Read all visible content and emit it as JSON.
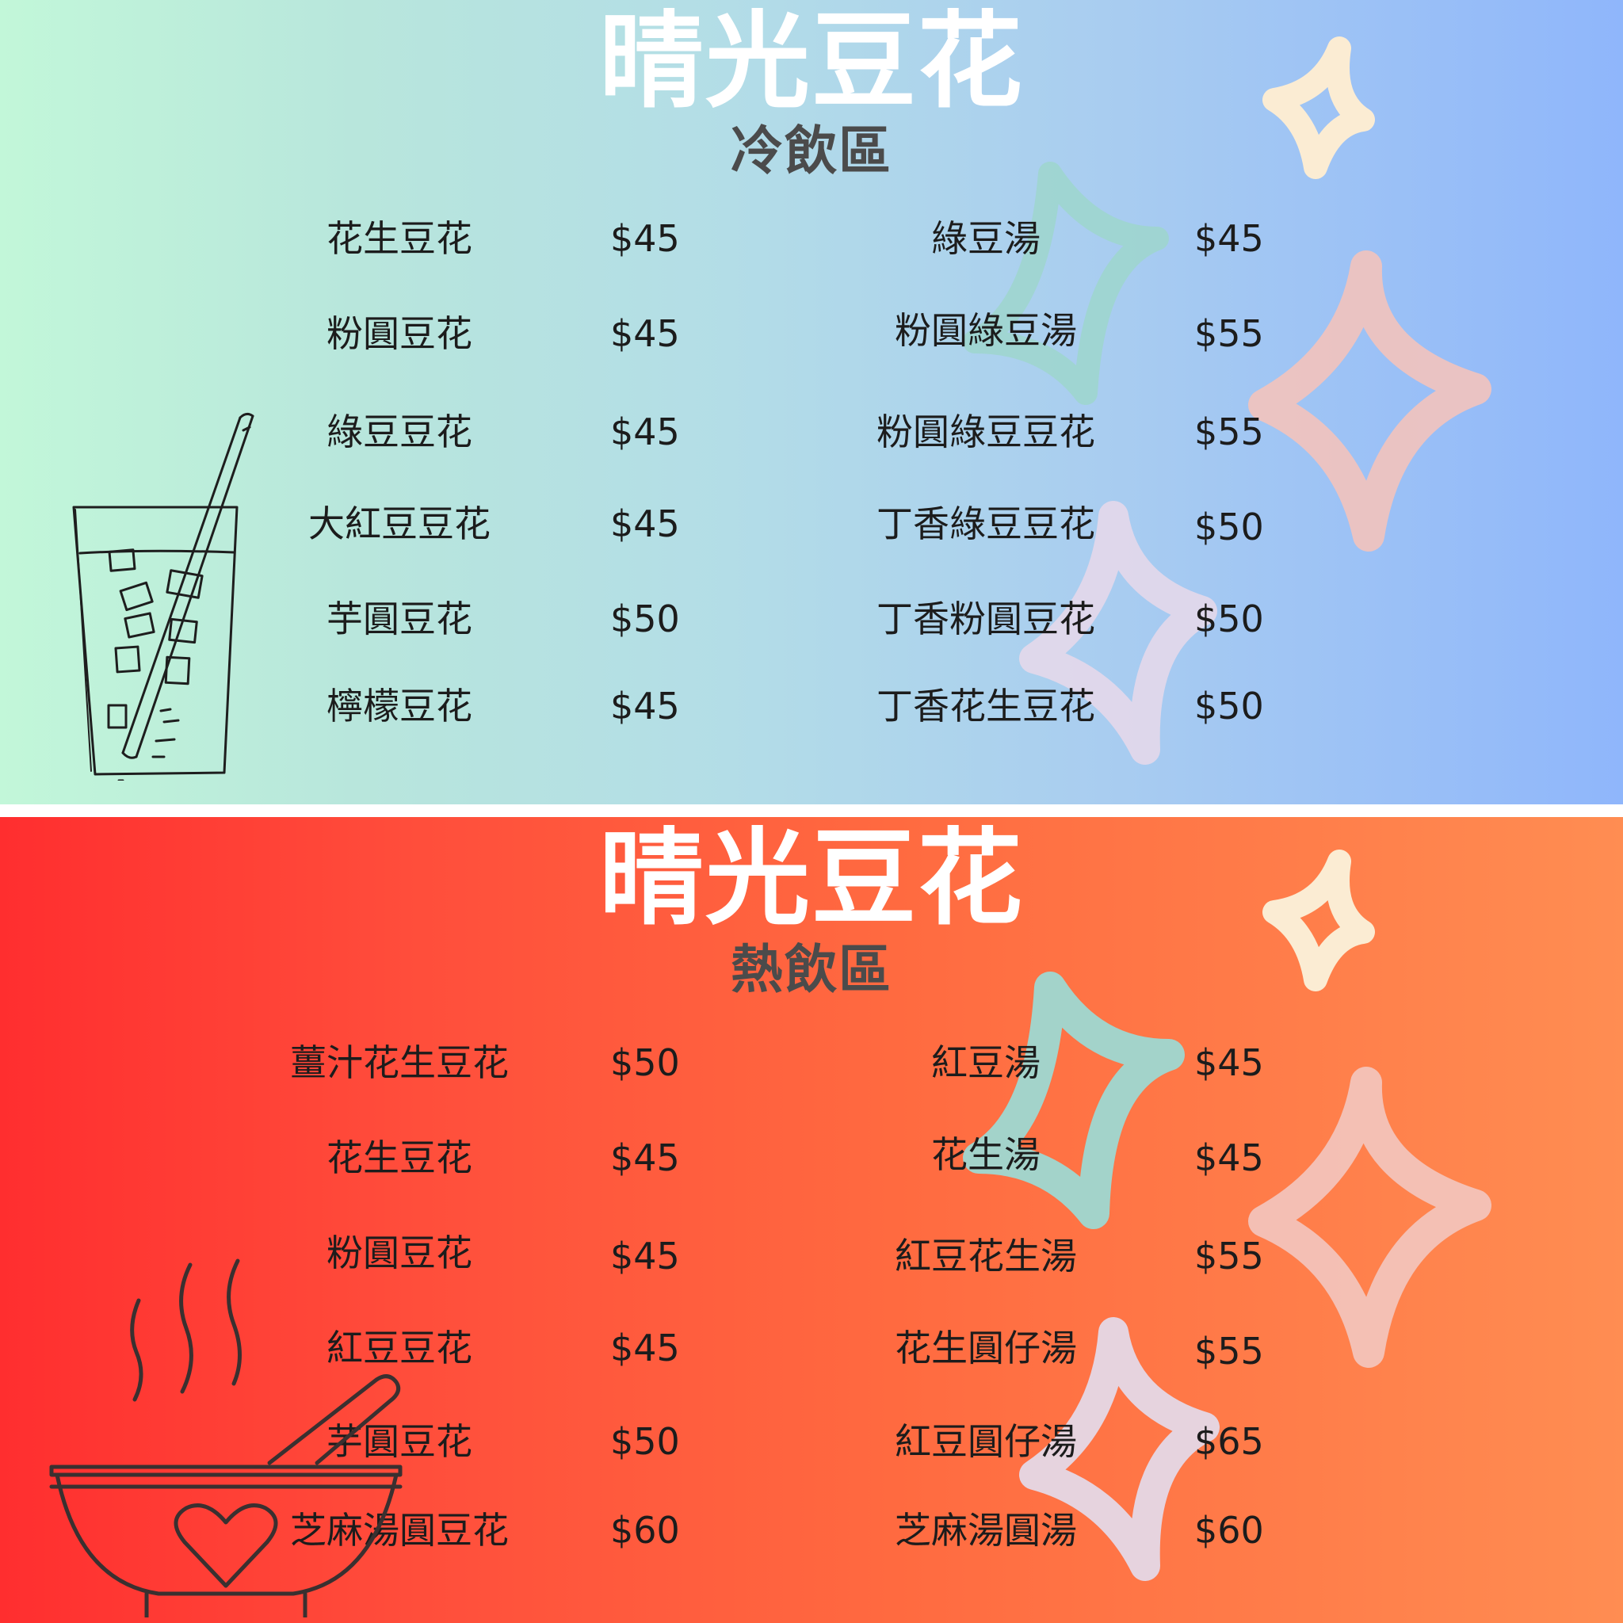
{
  "cold": {
    "title": "晴光豆花",
    "section": "冷飲區",
    "left": [
      {
        "name": "花生豆花",
        "price": "$45"
      },
      {
        "name": "粉圓豆花",
        "price": "$45"
      },
      {
        "name": "綠豆豆花",
        "price": "$45"
      },
      {
        "name": "大紅豆豆花",
        "price": "$45"
      },
      {
        "name": "芋圓豆花",
        "price": "$50"
      },
      {
        "name": "檸檬豆花",
        "price": "$45"
      }
    ],
    "right": [
      {
        "name": "綠豆湯",
        "price": "$45"
      },
      {
        "name": "粉圓綠豆湯",
        "price": "$55"
      },
      {
        "name": "粉圓綠豆豆花",
        "price": "$55"
      },
      {
        "name": "丁香綠豆豆花",
        "price": "$50"
      },
      {
        "name": "丁香粉圓豆花",
        "price": "$50"
      },
      {
        "name": "丁香花生豆花",
        "price": "$50"
      }
    ]
  },
  "hot": {
    "title": "晴光豆花",
    "section": "熱飲區",
    "left": [
      {
        "name": "薑汁花生豆花",
        "price": "$50"
      },
      {
        "name": "花生豆花",
        "price": "$45"
      },
      {
        "name": "粉圓豆花",
        "price": "$45"
      },
      {
        "name": "紅豆豆花",
        "price": "$45"
      },
      {
        "name": "芋圓豆花",
        "price": "$50"
      },
      {
        "name": "芝麻湯圓豆花",
        "price": "$60"
      }
    ],
    "right": [
      {
        "name": "紅豆湯",
        "price": "$45"
      },
      {
        "name": "花生湯",
        "price": "$45"
      },
      {
        "name": "紅豆花生湯",
        "price": "$55"
      },
      {
        "name": "花生圓仔湯",
        "price": "$55"
      },
      {
        "name": "紅豆圓仔湯",
        "price": "$65"
      },
      {
        "name": "芝麻湯圓湯",
        "price": "$60"
      }
    ]
  },
  "icons": {
    "cold_illustration": "iced-drink-icon",
    "hot_illustration": "hot-bowl-icon",
    "decoration": "sparkle-star-icon"
  },
  "colors": {
    "title": "#ffffff",
    "subtitle": "#4b4b4b",
    "item_text": "#1c1c1c",
    "cold_gradient_start": "#c2f7d9",
    "cold_gradient_end": "#8fb6fb",
    "hot_gradient_start": "#ff2e2f",
    "hot_gradient_end": "#ff8d52",
    "star_cream": "#fbecd3",
    "star_teal": "#9ed8d2",
    "star_pink": "#f3c6c0",
    "star_lavender": "#e4dbec"
  }
}
